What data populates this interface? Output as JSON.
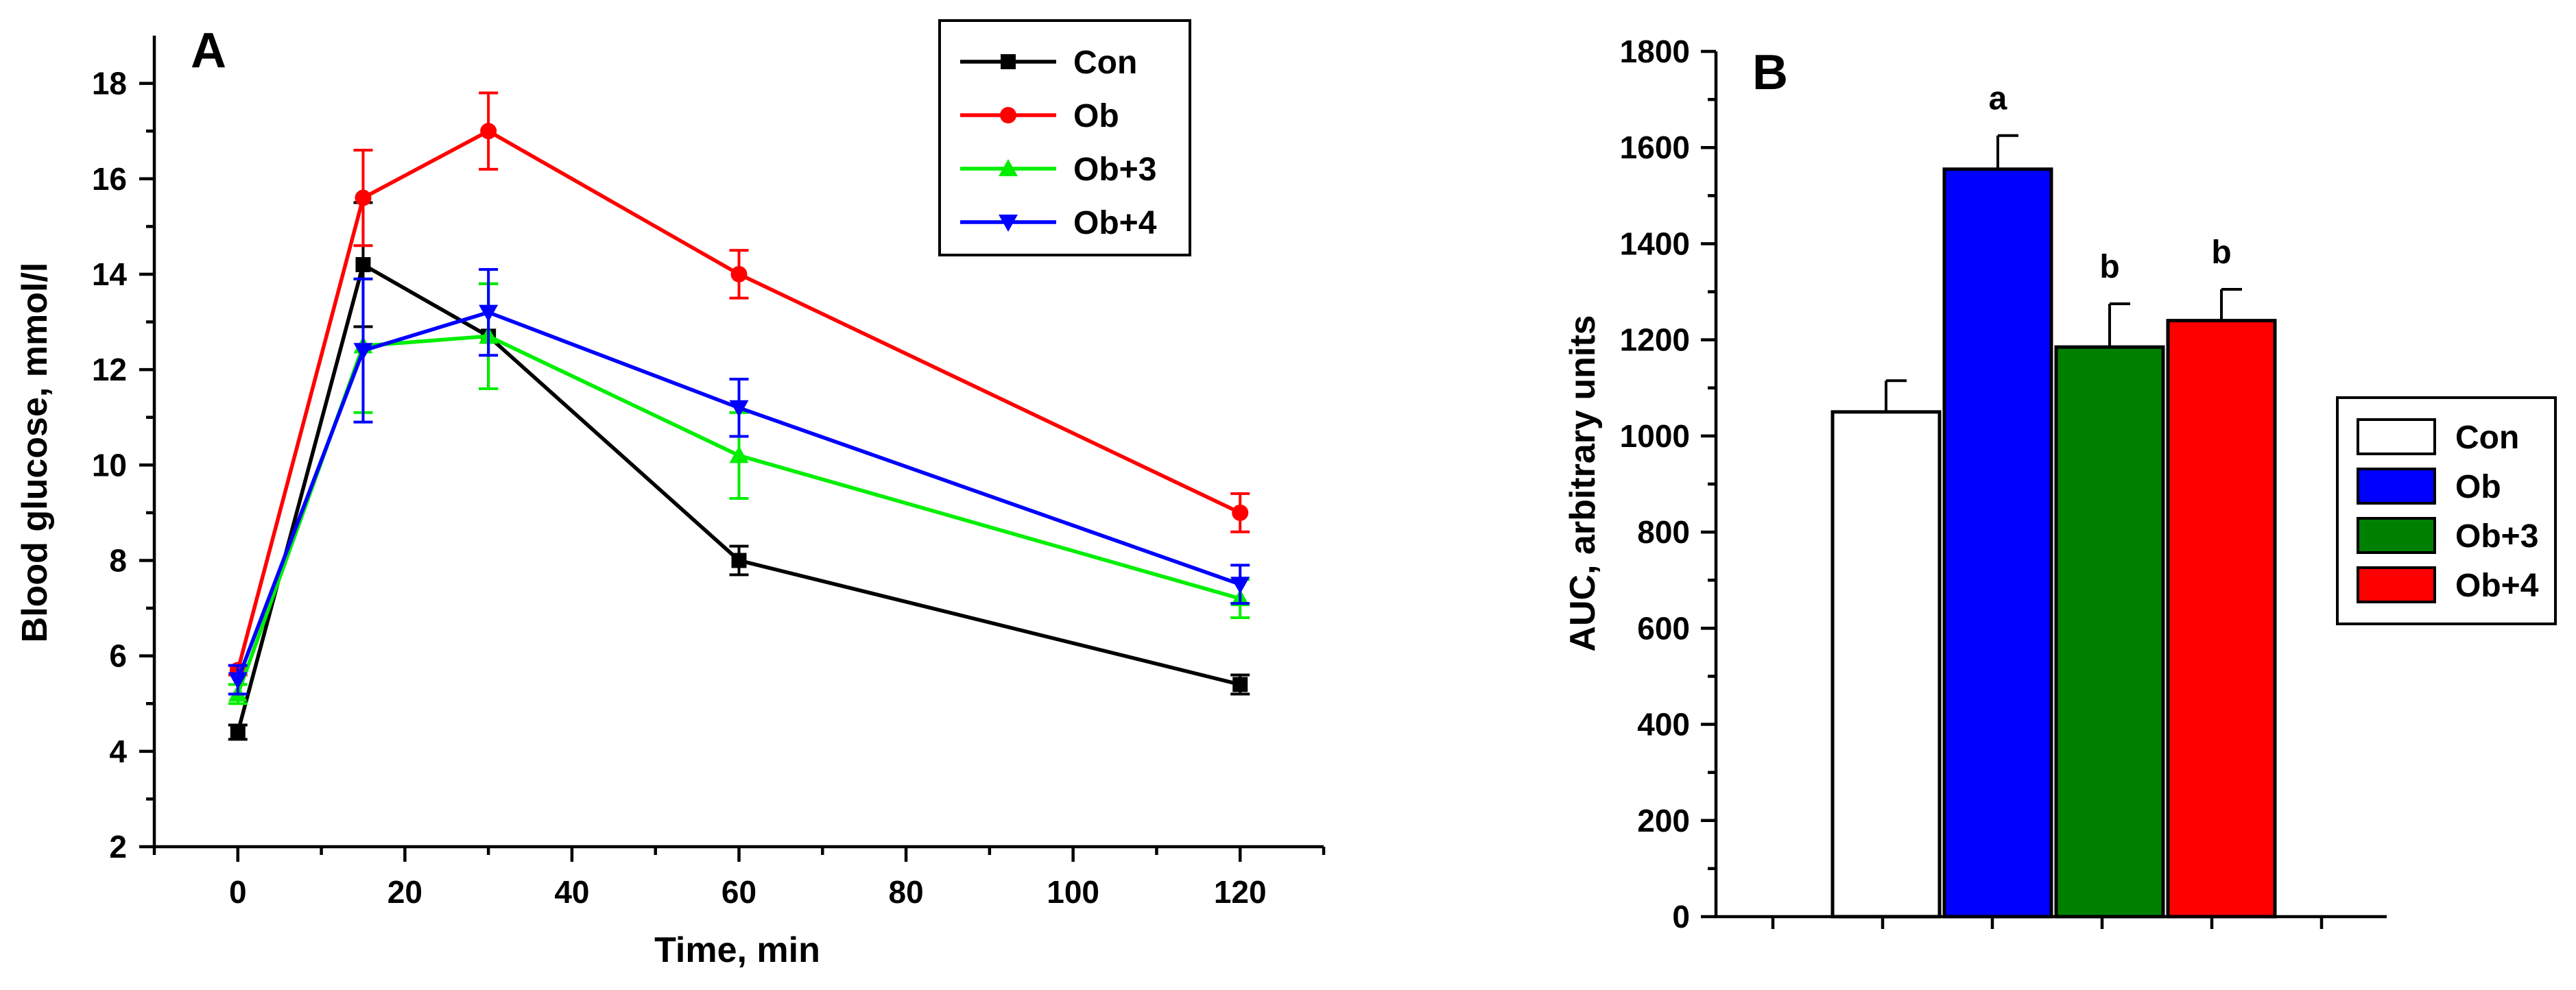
{
  "chart_data": [
    {
      "type": "line",
      "panel_label": "A",
      "xlabel": "Time, min",
      "ylabel": "Blood glucose, mmol/l",
      "xlim": [
        -10,
        130
      ],
      "ylim": [
        2,
        19
      ],
      "xticks": [
        0,
        20,
        40,
        60,
        80,
        100,
        120
      ],
      "yticks": [
        2,
        4,
        6,
        8,
        10,
        12,
        14,
        16,
        18
      ],
      "legend_position": "top-right",
      "x": [
        0,
        15,
        30,
        60,
        120
      ],
      "series": [
        {
          "name": "Con",
          "color": "#000000",
          "marker": "square",
          "values": [
            4.4,
            14.2,
            12.7,
            8.0,
            5.4
          ],
          "errors": [
            0.15,
            1.3,
            1.1,
            0.3,
            0.2
          ]
        },
        {
          "name": "Ob",
          "color": "#ff0000",
          "marker": "circle",
          "values": [
            5.7,
            15.6,
            17.0,
            14.0,
            9.0
          ],
          "errors": [
            0.1,
            1.0,
            0.8,
            0.5,
            0.4
          ]
        },
        {
          "name": "Ob+3",
          "color": "#00ee00",
          "marker": "triangle-up",
          "values": [
            5.2,
            12.5,
            12.7,
            10.2,
            7.2
          ],
          "errors": [
            0.2,
            1.4,
            1.1,
            0.9,
            0.4
          ]
        },
        {
          "name": "Ob+4",
          "color": "#0000ff",
          "marker": "triangle-down",
          "values": [
            5.5,
            12.4,
            13.2,
            11.2,
            7.5
          ],
          "errors": [
            0.3,
            1.5,
            0.9,
            0.6,
            0.4
          ]
        }
      ]
    },
    {
      "type": "bar",
      "panel_label": "B",
      "xlabel": "",
      "ylabel": "AUC, arbitrary units",
      "ylim": [
        0,
        1800
      ],
      "yticks": [
        0,
        200,
        400,
        600,
        800,
        1000,
        1200,
        1400,
        1600,
        1800
      ],
      "legend_position": "right",
      "categories": [
        "Con",
        "Ob",
        "Ob+3",
        "Ob+4"
      ],
      "values": [
        1050,
        1555,
        1185,
        1240
      ],
      "errors": [
        65,
        70,
        90,
        65
      ],
      "colors": [
        "#ffffff",
        "#0000ff",
        "#008000",
        "#ff0000"
      ],
      "annotations": [
        "",
        "a",
        "b",
        "b"
      ]
    }
  ]
}
